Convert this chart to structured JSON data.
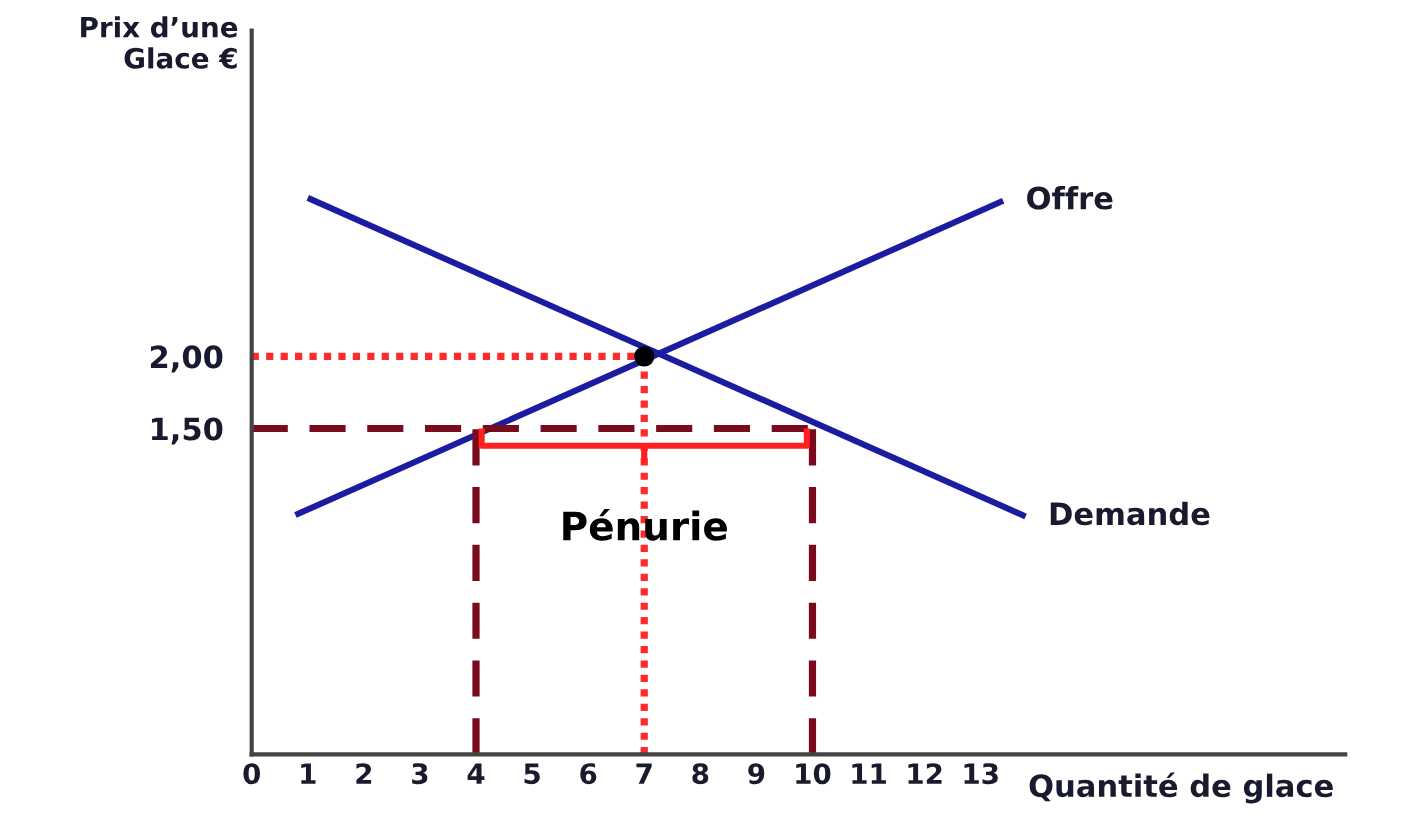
{
  "chart_data": {
    "type": "line",
    "xlabel": "Quantité de glace",
    "ylabel": "Prix d’une\nGlace €",
    "xlim": [
      0,
      19.5
    ],
    "xticks": [
      0,
      1,
      2,
      3,
      4,
      5,
      6,
      7,
      8,
      9,
      10,
      11,
      12,
      13
    ],
    "ylim": [
      -0.76,
      4.26
    ],
    "yticks": [
      {
        "value": 1.5,
        "label": "1,50"
      },
      {
        "value": 2,
        "label": "2,00"
      }
    ],
    "grid": false,
    "legend": false,
    "series": [
      {
        "name": "Offre",
        "color": "#1c1ca0",
        "line_style": "solid",
        "x": [
          0.78,
          13.4
        ],
        "values": [
          0.9,
          3.08
        ]
      },
      {
        "name": "Demande",
        "color": "#1c1ca0",
        "line_style": "solid",
        "x": [
          1.0,
          13.8
        ],
        "values": [
          3.1,
          0.89
        ]
      },
      {
        "color": "#ff2a2a",
        "line_style": "dotted",
        "x": [
          0,
          7
        ],
        "values": [
          2,
          2
        ]
      },
      {
        "color": "#ff2a2a",
        "line_style": "dotted",
        "x": [
          7,
          7
        ],
        "values": [
          -0.76,
          2
        ]
      },
      {
        "color": "#7a0a1e",
        "line_style": "dashed",
        "x": [
          0,
          10
        ],
        "values": [
          1.5,
          1.5
        ]
      },
      {
        "color": "#7a0a1e",
        "line_style": "dashed",
        "x": [
          4,
          4
        ],
        "values": [
          -0.76,
          1.5
        ]
      },
      {
        "color": "#7a0a1e",
        "line_style": "dashed",
        "x": [
          10,
          10
        ],
        "values": [
          -0.76,
          1.5
        ]
      },
      {
        "color": "#ff2020",
        "line_style": "solid",
        "x": [
          4.1,
          4.1,
          7,
          7,
          7,
          9.9,
          9.9
        ],
        "values": [
          1.5,
          1.38,
          1.38,
          1.28,
          1.38,
          1.38,
          1.5
        ]
      },
      {
        "type": "scatter",
        "marker": "circle",
        "color": "#000000",
        "x": [
          7
        ],
        "values": [
          2
        ]
      }
    ],
    "annotations": [
      {
        "text": "Pénurie",
        "x": 7,
        "y": 0.8
      }
    ]
  }
}
